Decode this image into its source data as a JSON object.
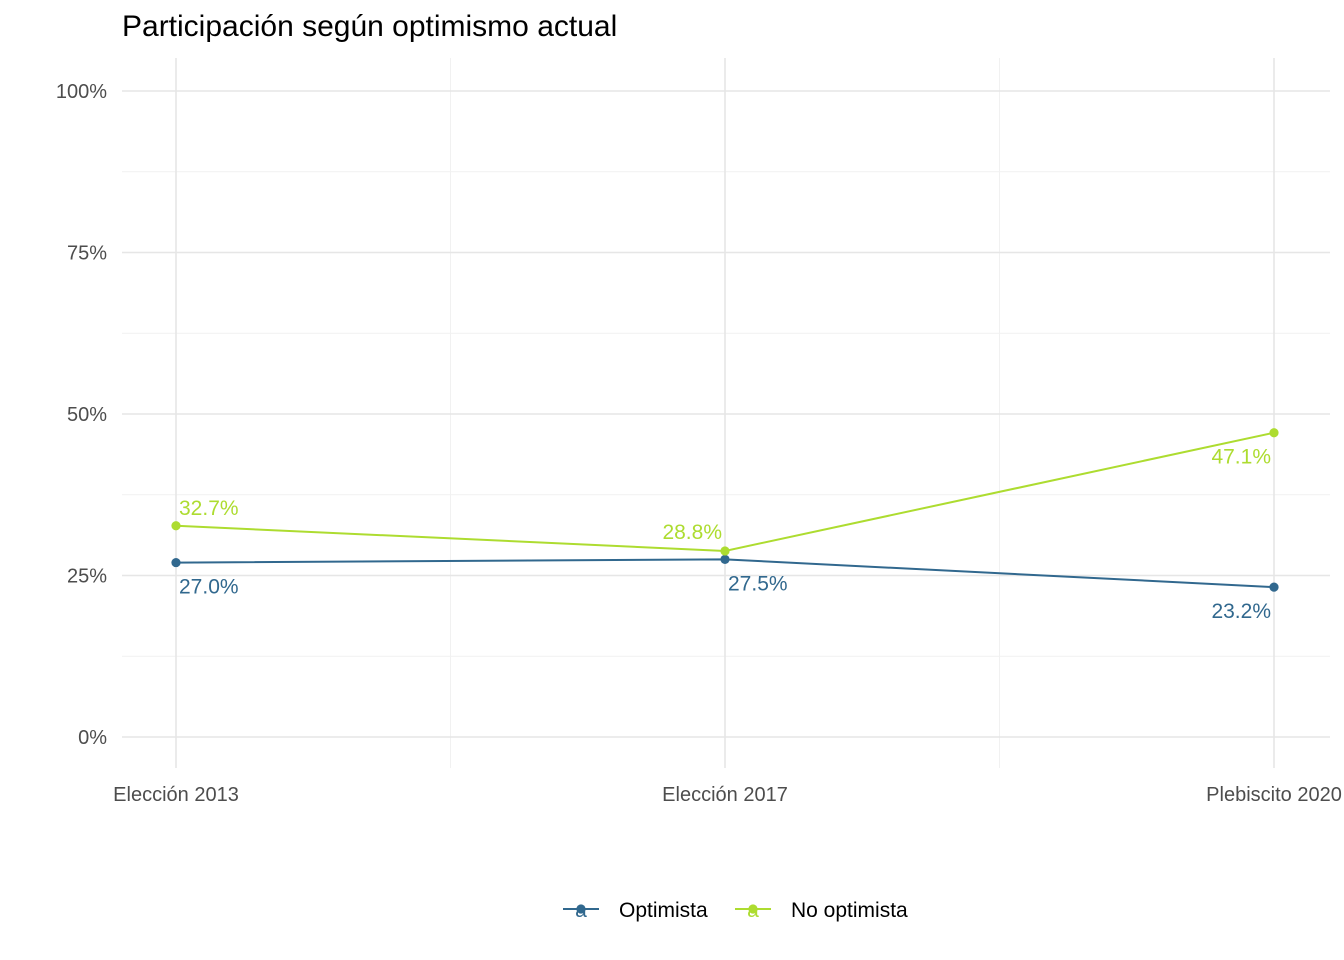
{
  "chart_data": {
    "type": "line",
    "title": "Participación según optimismo actual",
    "xlabel": "",
    "ylabel": "",
    "categories": [
      "Elección 2013",
      "Elección 2017",
      "Plebiscito 2020"
    ],
    "y_ticks": [
      {
        "value": 0,
        "label": "0%"
      },
      {
        "value": 25,
        "label": "25%"
      },
      {
        "value": 50,
        "label": "50%"
      },
      {
        "value": 75,
        "label": "75%"
      },
      {
        "value": 100,
        "label": "100%"
      }
    ],
    "ylim": [
      -4,
      104
    ],
    "grid": true,
    "legend_position": "bottom",
    "series": [
      {
        "name": "Optimista",
        "color": "#31688e",
        "values": [
          27.0,
          27.5,
          23.2
        ],
        "labels": [
          "27.0%",
          "27.5%",
          "23.2%"
        ]
      },
      {
        "name": "No optimista",
        "color": "#addc30",
        "values": [
          32.7,
          28.8,
          47.1
        ],
        "labels": [
          "32.7%",
          "28.8%",
          "47.1%"
        ]
      }
    ],
    "legend_key_glyph": "a"
  }
}
